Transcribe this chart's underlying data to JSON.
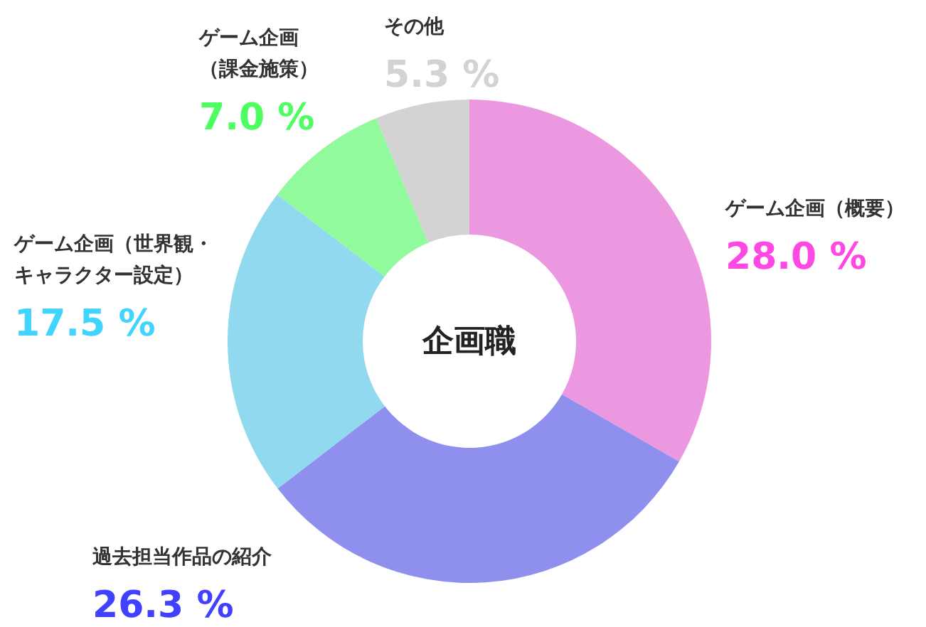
{
  "chart_data": {
    "type": "donut",
    "title": "企画職",
    "categories": [
      "ゲーム企画（概要）",
      "過去担当作品の紹介",
      "ゲーム企画（世界観・キャラクター設定）",
      "ゲーム企画（課金施策）",
      "その他"
    ],
    "values": [
      28.0,
      26.3,
      17.5,
      7.0,
      5.3
    ],
    "colors": [
      "#ec98e0",
      "#8f8fee",
      "#90d9ee",
      "#90fa9c",
      "#d3d3d3"
    ],
    "value_labels": [
      "28.0 %",
      "26.3 %",
      "17.5 %",
      "7.0 %",
      "5.3 %"
    ]
  }
}
